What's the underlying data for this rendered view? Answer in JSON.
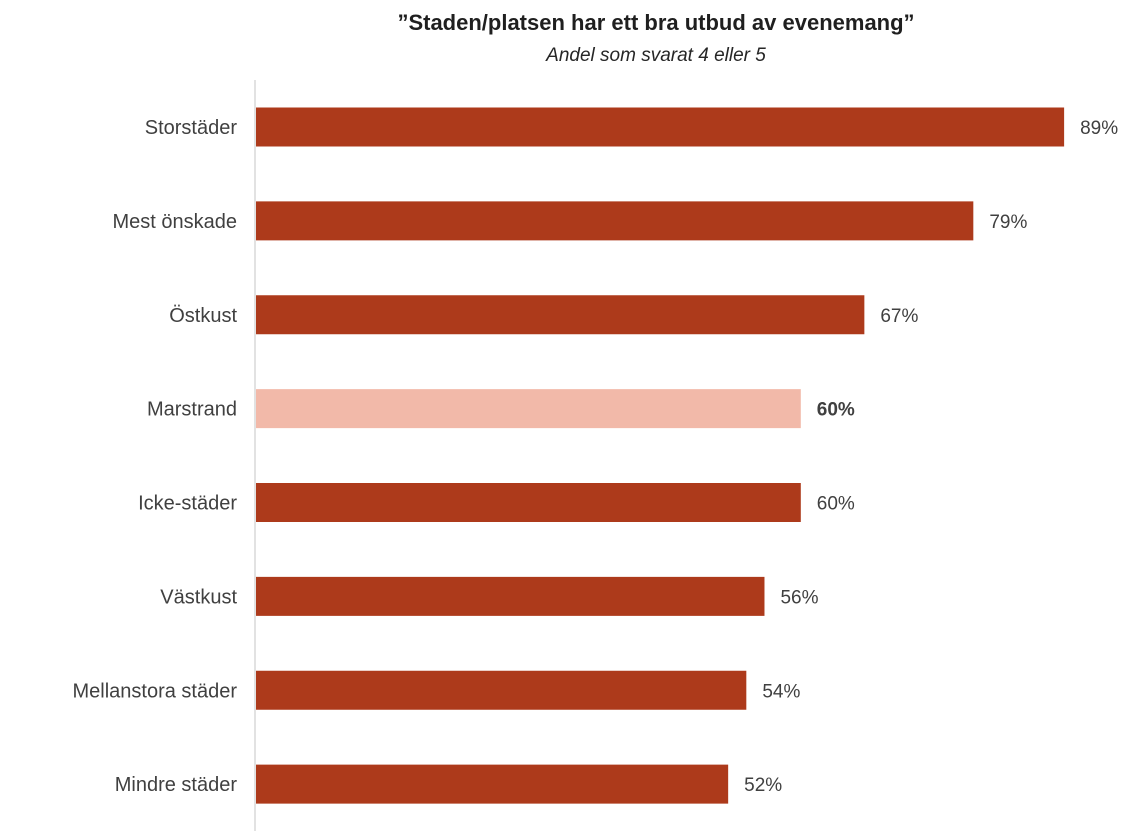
{
  "chart_data": {
    "type": "bar",
    "orientation": "horizontal",
    "title": "”Staden/platsen har ett bra utbud av evenemang”",
    "subtitle": "Andel som svarat 4 eller 5",
    "categories": [
      "Storstäder",
      "Mest önskade",
      "Östkust",
      "Marstrand",
      "Icke-städer",
      "Västkust",
      "Mellanstora städer",
      "Mindre städer"
    ],
    "values": [
      89,
      79,
      67,
      60,
      60,
      56,
      54,
      52
    ],
    "value_labels": [
      "89%",
      "79%",
      "67%",
      "60%",
      "60%",
      "56%",
      "54%",
      "52%"
    ],
    "highlighted_category": "Marstrand",
    "xlim": [
      0,
      100
    ],
    "grid": false,
    "legend": "none",
    "colors": {
      "bar": "#ad3a1b",
      "highlight": "#f2b9a9",
      "axis": "#d9d9d9",
      "label": "#404040",
      "highlight_label": "#404040"
    }
  }
}
